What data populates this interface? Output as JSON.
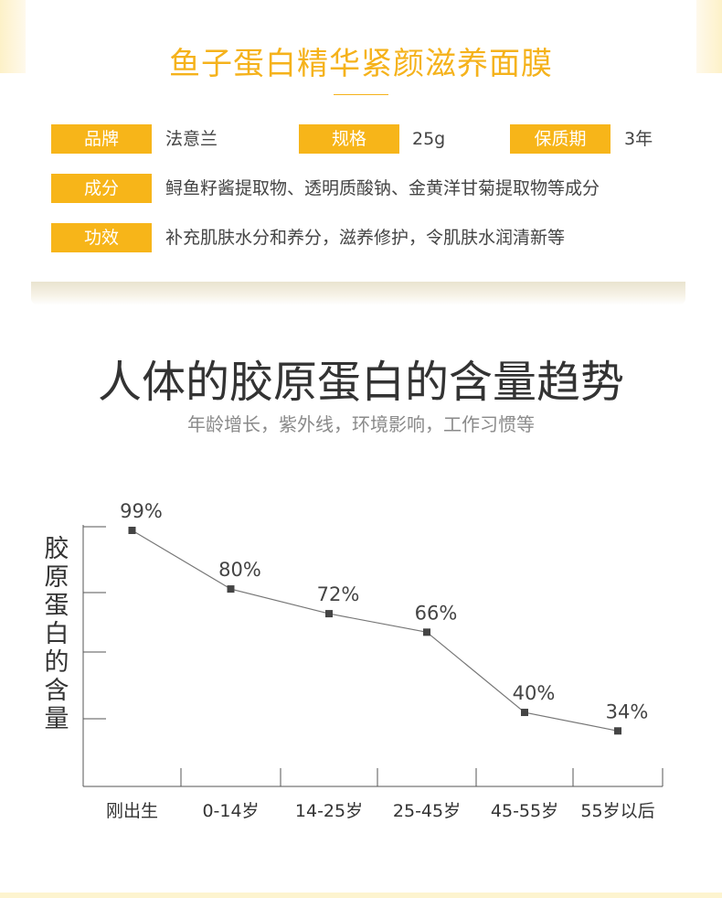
{
  "product": {
    "title": "鱼子蛋白精华紧颜滋养面膜",
    "specs": [
      {
        "label": "品牌",
        "value": "法意兰"
      },
      {
        "label": "规格",
        "value": "25g"
      },
      {
        "label": "保质期",
        "value": "3年"
      }
    ],
    "ingredients": {
      "label": "成分",
      "value": "鲟鱼籽酱提取物、透明质酸钠、金黄洋甘菊提取物等成分"
    },
    "effects": {
      "label": "功效",
      "value": "补充肌肤水分和养分，滋养修护，令肌肤水润清新等"
    }
  },
  "chart_section": {
    "title": "人体的胶原蛋白的含量趋势",
    "subtitle": "年龄增长，紫外线，环境影响，工作习惯等"
  },
  "chart_data": {
    "type": "line",
    "title": "",
    "xlabel": "",
    "ylabel": "胶原蛋白的含量",
    "categories": [
      "刚出生",
      "0-14岁",
      "14-25岁",
      "25-45岁",
      "45-55岁",
      "55岁以后"
    ],
    "series": [
      {
        "values": [
          99,
          80,
          72,
          66,
          40,
          34
        ],
        "labels": [
          "99%",
          "80%",
          "72%",
          "66%",
          "40%",
          "34%"
        ]
      }
    ],
    "ylim": [
      16,
      99
    ],
    "grid": false,
    "colors": {
      "line": "#777777",
      "marker": "#444444",
      "axis": "#555555"
    }
  },
  "colors": {
    "accent": "#f7b519",
    "title": "#f5b21b"
  }
}
